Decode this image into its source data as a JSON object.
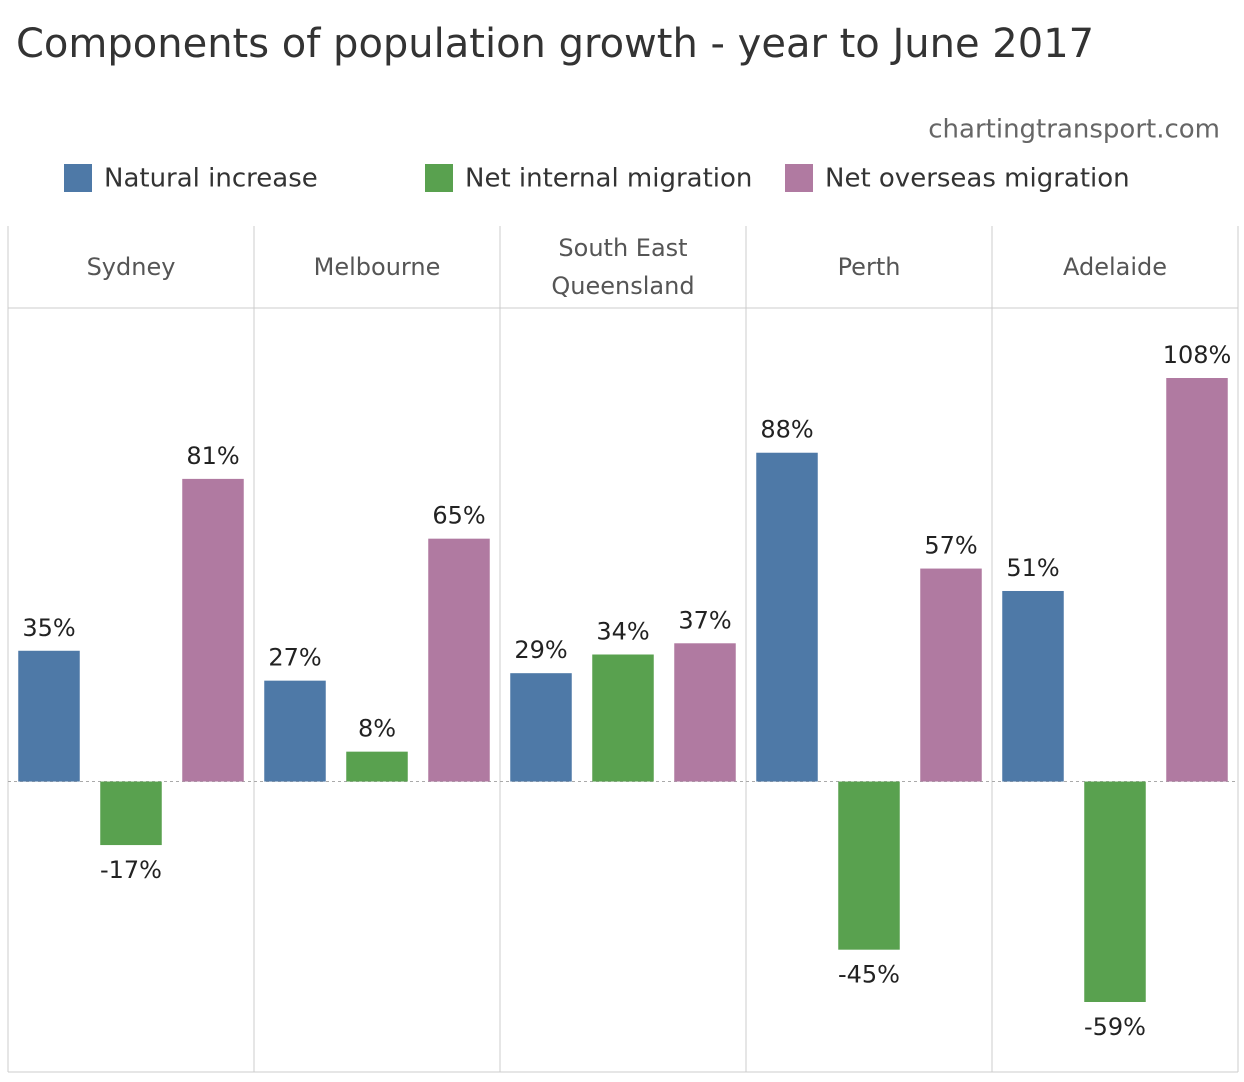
{
  "chart_data": {
    "type": "bar",
    "title": "Components of population growth - year to June 2017",
    "subtitle": "chartingtransport.com",
    "categories": [
      "Sydney",
      "Melbourne",
      "South East Queensland",
      "Perth",
      "Adelaide"
    ],
    "series": [
      {
        "name": "Natural increase",
        "color": "#4e79a7",
        "values": [
          35,
          27,
          29,
          88,
          51
        ],
        "value_labels": [
          "35%",
          "27%",
          "29%",
          "88%",
          "51%"
        ]
      },
      {
        "name": "Net internal migration",
        "color": "#59a14f",
        "values": [
          -17,
          8,
          34,
          -45,
          -59
        ],
        "value_labels": [
          "-17%",
          "8%",
          "34%",
          "-45%",
          "-59%"
        ]
      },
      {
        "name": "Net overseas migration",
        "color": "#b07aa1",
        "values": [
          81,
          65,
          37,
          57,
          108
        ],
        "value_labels": [
          "81%",
          "65%",
          "37%",
          "57%",
          "108%"
        ]
      }
    ]
  }
}
